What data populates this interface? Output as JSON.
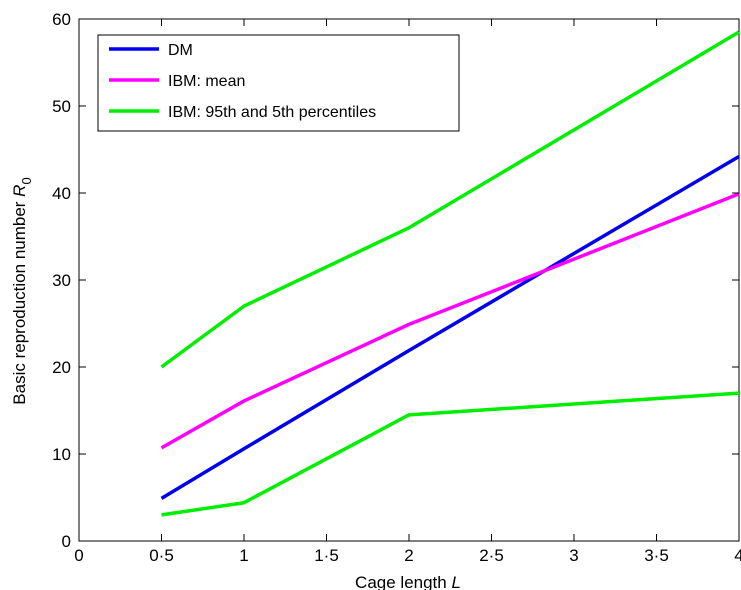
{
  "chart_data": {
    "type": "line",
    "title": "",
    "xlabel": "Cage length",
    "xlabel_symbol": "L",
    "ylabel": "Basic reproduction number",
    "ylabel_symbol": "R",
    "ylabel_subscript": "0",
    "xlim": [
      0,
      4
    ],
    "ylim": [
      0,
      60
    ],
    "x_ticks": [
      0,
      0.5,
      1,
      1.5,
      2,
      2.5,
      3,
      3.5,
      4
    ],
    "x_tick_labels": [
      "0",
      "0·5",
      "1",
      "1·5",
      "2",
      "2·5",
      "3",
      "3·5",
      "4"
    ],
    "y_ticks": [
      0,
      10,
      20,
      30,
      40,
      50,
      60
    ],
    "y_tick_labels": [
      "0",
      "10",
      "20",
      "30",
      "40",
      "50",
      "60"
    ],
    "grid": false,
    "legend_position": "top-left",
    "series": [
      {
        "name": "DM",
        "color": "#0000ee",
        "x": [
          0.5,
          1,
          2,
          4
        ],
        "y": [
          4.9,
          10.6,
          21.9,
          44.2
        ]
      },
      {
        "name": "IBM: mean",
        "color": "#ff00ff",
        "x": [
          0.5,
          1,
          2,
          4
        ],
        "y": [
          10.7,
          16.1,
          24.9,
          39.9
        ]
      },
      {
        "name": "IBM: 95th and 5th percentiles",
        "color": "#00ee00",
        "x": [
          0.5,
          1,
          2,
          4
        ],
        "y": [
          20.0,
          27.0,
          36.0,
          58.5
        ]
      },
      {
        "name": "",
        "color": "#00ee00",
        "x": [
          0.5,
          1,
          2,
          4
        ],
        "y": [
          3.0,
          4.4,
          14.5,
          17.0
        ]
      }
    ]
  }
}
